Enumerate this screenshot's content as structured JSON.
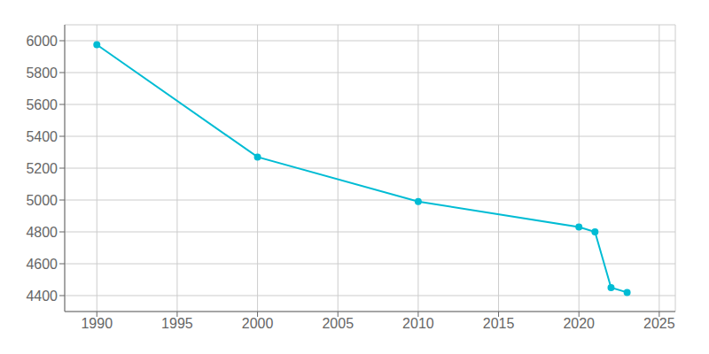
{
  "chart_data": {
    "type": "line",
    "x": [
      1990,
      2000,
      2010,
      2020,
      2021,
      2022,
      2023
    ],
    "values": [
      5975,
      5270,
      4990,
      4830,
      4800,
      4450,
      4420
    ],
    "color": "#00bcd4",
    "marker": "circle",
    "xlim": [
      1988,
      2026
    ],
    "ylim": [
      4300,
      6100
    ],
    "xticks": [
      1990,
      1995,
      2000,
      2005,
      2010,
      2015,
      2020,
      2025
    ],
    "yticks": [
      4400,
      4600,
      4800,
      5000,
      5200,
      5400,
      5600,
      5800,
      6000
    ],
    "grid": true
  }
}
